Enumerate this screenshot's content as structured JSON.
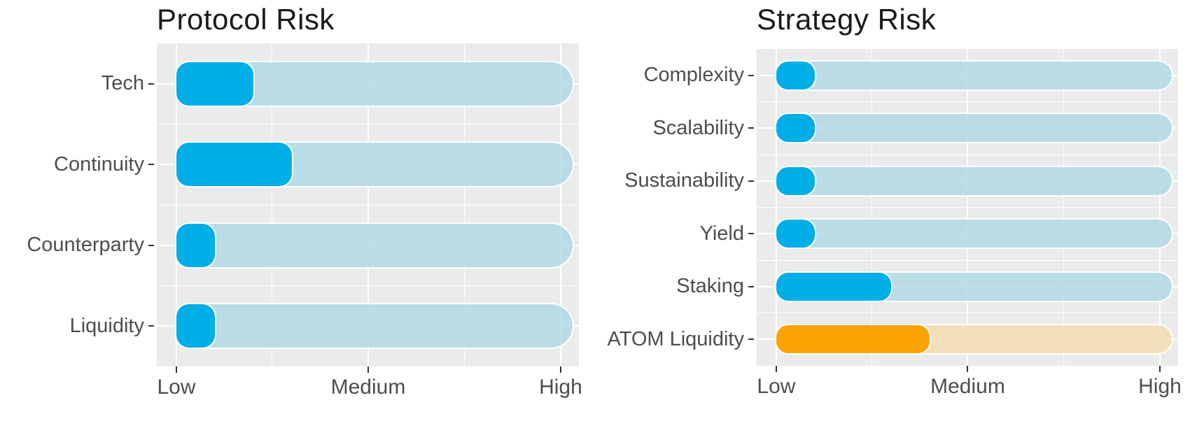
{
  "page": {
    "background": "#ffffff",
    "description": "Two horizontal rounded-bar risk meter charts"
  },
  "colors": {
    "panel_background": "#ebebeb",
    "gridline": "#ffffff",
    "bar_blue": "#00aee8",
    "bar_blue_track": "rgba(173,216,230,0.8)",
    "bar_orange": "#fba302",
    "bar_orange_track": "rgba(245,222,179,0.85)",
    "bar_outline": "#ffffff",
    "axis_text": "#4d4d4d",
    "tick_mark": "#333333",
    "title_text": "#1a1a1a"
  },
  "chart_data": [
    {
      "type": "bar",
      "orientation": "horizontal",
      "title": "Protocol Risk",
      "categories": [
        "Tech",
        "Continuity",
        "Counterparty",
        "Liquidity"
      ],
      "values": [
        2,
        3,
        1,
        1
      ],
      "bar_colors": [
        "#00aee8",
        "#00aee8",
        "#00aee8",
        "#00aee8"
      ],
      "track_colors": [
        "rgba(173,216,230,0.8)",
        "rgba(173,216,230,0.8)",
        "rgba(173,216,230,0.8)",
        "rgba(173,216,230,0.8)"
      ],
      "xlabel": "",
      "ylabel": "",
      "xlim": [
        0,
        10
      ],
      "xtick_positions": [
        0,
        5,
        10
      ],
      "xtick_labels": [
        "Low",
        "Medium",
        "High"
      ],
      "grid": true,
      "legend": false,
      "background_track": true
    },
    {
      "type": "bar",
      "orientation": "horizontal",
      "title": "Strategy Risk",
      "categories": [
        "Complexity",
        "Scalability",
        "Sustainability",
        "Yield",
        "Staking",
        "ATOM Liquidity"
      ],
      "values": [
        1,
        1,
        1,
        1,
        3,
        4
      ],
      "bar_colors": [
        "#00aee8",
        "#00aee8",
        "#00aee8",
        "#00aee8",
        "#00aee8",
        "#fba302"
      ],
      "track_colors": [
        "rgba(173,216,230,0.8)",
        "rgba(173,216,230,0.8)",
        "rgba(173,216,230,0.8)",
        "rgba(173,216,230,0.8)",
        "rgba(173,216,230,0.8)",
        "rgba(245,222,179,0.85)"
      ],
      "xlabel": "",
      "ylabel": "",
      "xlim": [
        0,
        10
      ],
      "xtick_positions": [
        0,
        5,
        10
      ],
      "xtick_labels": [
        "Low",
        "Medium",
        "High"
      ],
      "grid": true,
      "legend": false,
      "background_track": true
    }
  ]
}
